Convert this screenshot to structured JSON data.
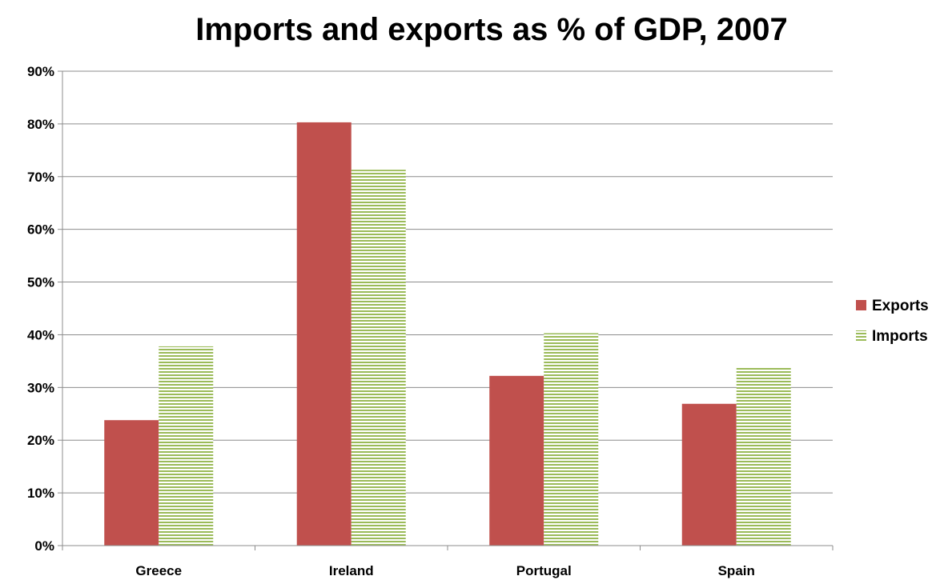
{
  "chart_data": {
    "type": "bar",
    "title": "Imports and exports as % of GDP, 2007",
    "categories": [
      "Greece",
      "Ireland",
      "Portugal",
      "Spain"
    ],
    "series": [
      {
        "name": "Exports",
        "values": [
          23.8,
          80.3,
          32.2,
          26.9
        ],
        "color": "#c0504d",
        "pattern": "solid"
      },
      {
        "name": "Imports",
        "values": [
          37.8,
          71.3,
          40.3,
          33.8
        ],
        "color": "#9bbb59",
        "pattern": "horizontal-stripes"
      }
    ],
    "ylim": [
      0,
      90
    ],
    "yticks": [
      0,
      10,
      20,
      30,
      40,
      50,
      60,
      70,
      80,
      90
    ],
    "ytick_labels": [
      "0%",
      "10%",
      "20%",
      "30%",
      "40%",
      "50%",
      "60%",
      "70%",
      "80%",
      "90%"
    ],
    "xlabel": "",
    "ylabel": "",
    "grid": "horizontal",
    "legend_position": "right"
  }
}
